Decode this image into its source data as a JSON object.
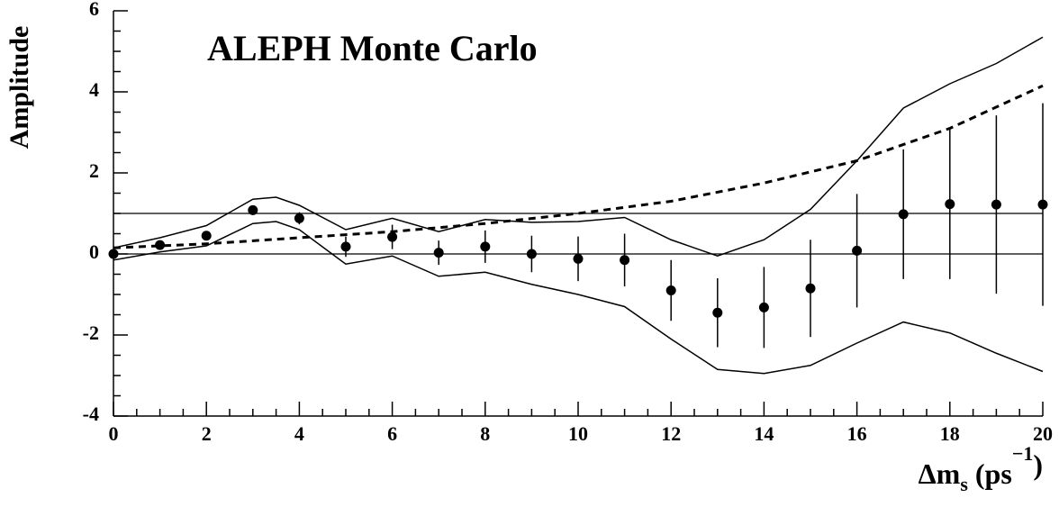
{
  "chart_data": {
    "type": "line",
    "title": "ALEPH Monte Carlo",
    "ylabel": "Amplitude",
    "xlabel_parts": [
      {
        "text": "Δm"
      },
      {
        "text": "s",
        "shift": "sub"
      },
      {
        "text": " (ps"
      },
      {
        "text": "−1",
        "shift": "sup"
      },
      {
        "text": ")"
      }
    ],
    "xlim": [
      0,
      20
    ],
    "ylim": [
      -4,
      6
    ],
    "xticks": [
      0,
      2,
      4,
      6,
      8,
      10,
      12,
      14,
      16,
      18,
      20
    ],
    "yticks": [
      -4,
      -2,
      0,
      2,
      4,
      6
    ],
    "hlines": [
      0,
      1
    ],
    "points": {
      "color": "#000000",
      "x": [
        0,
        1,
        2,
        3,
        4,
        5,
        6,
        7,
        8,
        9,
        10,
        11,
        12,
        13,
        14,
        15,
        16,
        17,
        18,
        19,
        20
      ],
      "values": [
        0,
        0.22,
        0.45,
        1.08,
        0.88,
        0.18,
        0.42,
        0.03,
        0.18,
        0.0,
        -0.12,
        -0.15,
        -0.9,
        -1.45,
        -1.32,
        -0.85,
        0.08,
        0.98,
        1.23,
        1.22,
        1.22
      ],
      "errors": [
        0.05,
        0.08,
        0.1,
        0.12,
        0.15,
        0.25,
        0.3,
        0.3,
        0.4,
        0.45,
        0.55,
        0.65,
        0.75,
        0.85,
        1.0,
        1.2,
        1.4,
        1.6,
        1.85,
        2.2,
        2.5
      ]
    },
    "series": [
      {
        "style": "solid",
        "color": "#000000",
        "x": [
          0,
          1,
          2,
          3,
          3.5,
          4,
          5,
          6,
          7,
          8,
          9,
          10,
          11,
          12,
          13,
          14,
          15,
          16,
          17,
          18,
          19,
          20
        ],
        "values": [
          0.15,
          0.4,
          0.7,
          1.35,
          1.4,
          1.2,
          0.6,
          0.88,
          0.55,
          0.85,
          0.78,
          0.8,
          0.9,
          0.35,
          -0.05,
          0.35,
          1.1,
          2.3,
          3.6,
          4.2,
          4.7,
          5.35
        ]
      },
      {
        "style": "solid",
        "color": "#000000",
        "x": [
          0,
          1,
          2,
          3,
          3.5,
          4,
          5,
          6,
          7,
          8,
          9,
          10,
          11,
          12,
          13,
          14,
          15,
          16,
          17,
          18,
          19,
          20
        ],
        "values": [
          -0.15,
          0.05,
          0.2,
          0.75,
          0.8,
          0.6,
          -0.25,
          -0.05,
          -0.55,
          -0.45,
          -0.75,
          -1.0,
          -1.3,
          -2.1,
          -2.85,
          -2.95,
          -2.75,
          -2.2,
          -1.68,
          -1.95,
          -2.45,
          -2.9
        ]
      },
      {
        "style": "dashed",
        "color": "#000000",
        "x": [
          0,
          2,
          4,
          6,
          8,
          10,
          12,
          14,
          16,
          18,
          20
        ],
        "values": [
          0.15,
          0.25,
          0.4,
          0.55,
          0.75,
          1.0,
          1.3,
          1.75,
          2.3,
          3.1,
          4.15
        ]
      }
    ]
  }
}
